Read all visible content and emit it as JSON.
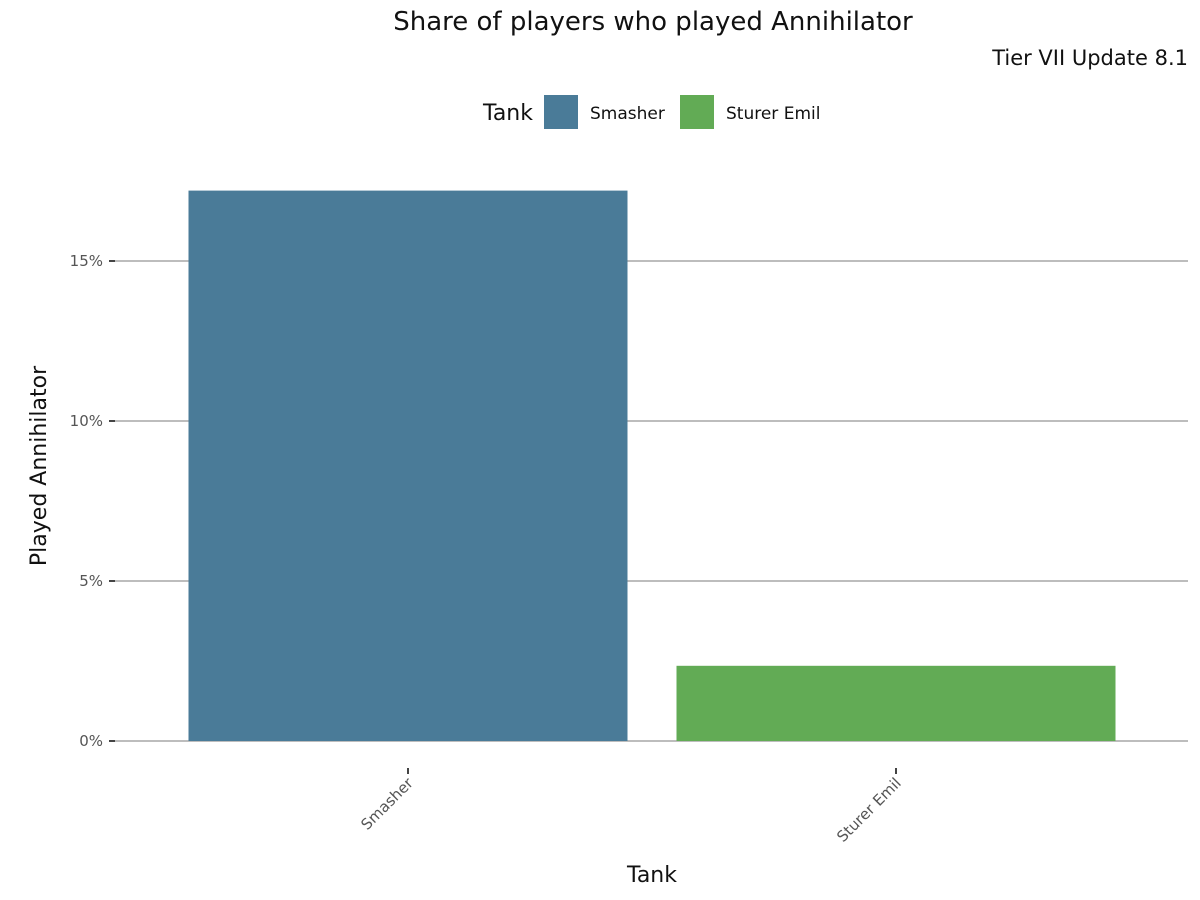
{
  "chart_data": {
    "type": "bar",
    "title": "Share of players who played Annihilator",
    "subtitle": "Tier VII Update 8.1",
    "xlabel": "Tank",
    "ylabel": "Played Annihilator",
    "categories": [
      "Smasher",
      "Sturer Emil"
    ],
    "values": [
      17.2,
      2.35
    ],
    "colors": [
      "#4a7b98",
      "#62ab55"
    ],
    "ylim": [
      0,
      18
    ],
    "yticks": [
      0,
      5,
      10,
      15
    ],
    "ytick_labels": [
      "0%",
      "5%",
      "10%",
      "15%"
    ],
    "grid": true,
    "legend": {
      "title": "Tank",
      "position": "top",
      "entries": [
        "Smasher",
        "Sturer Emil"
      ]
    }
  }
}
